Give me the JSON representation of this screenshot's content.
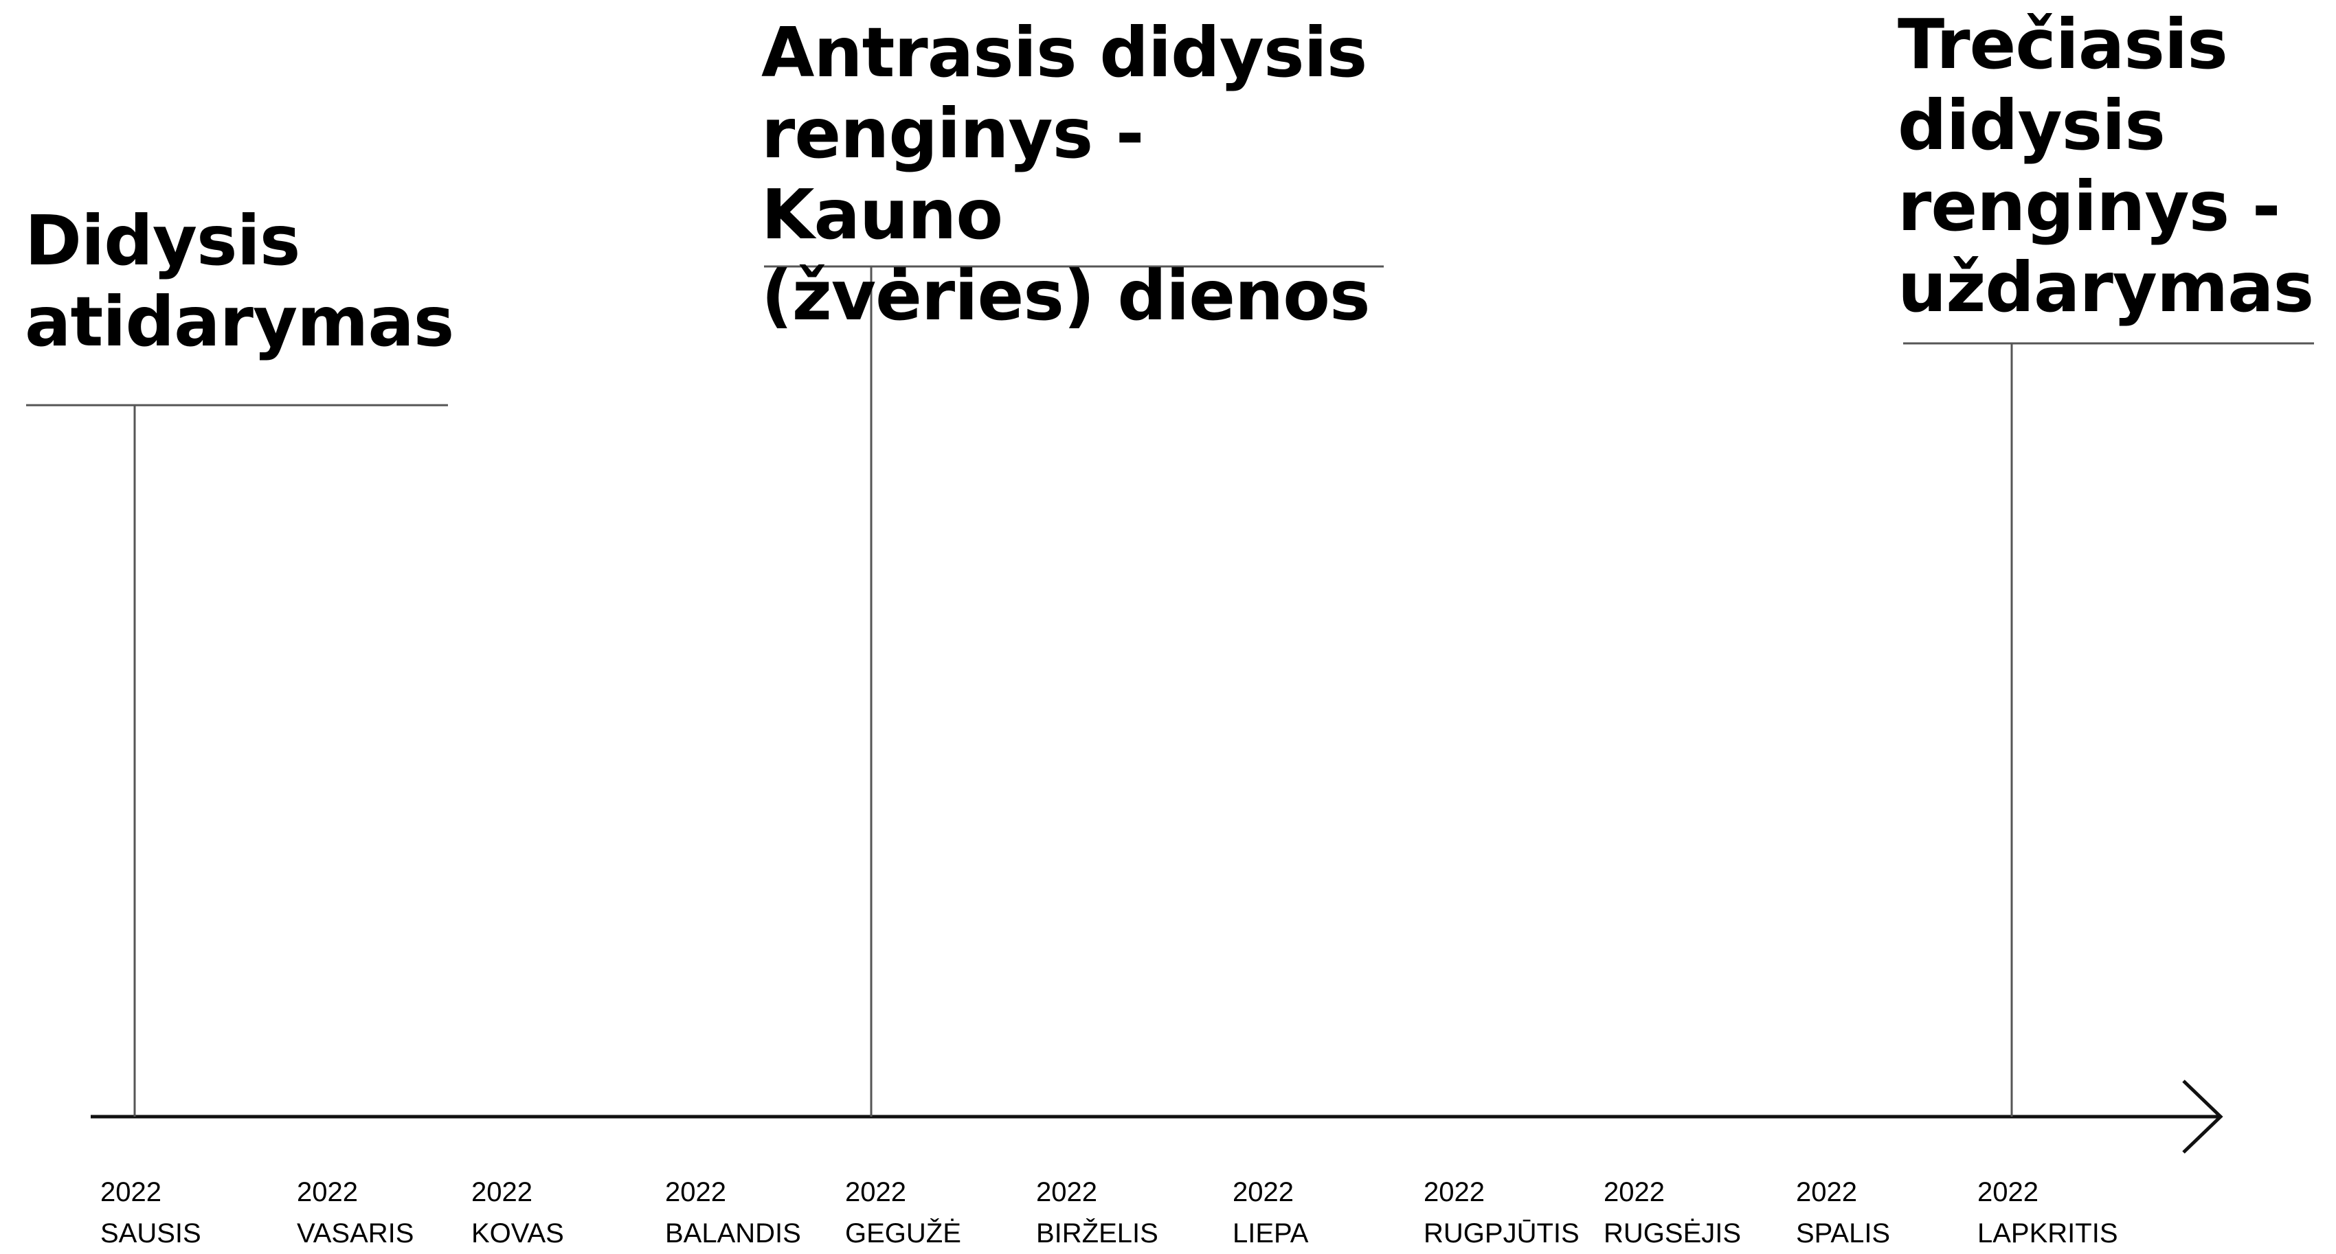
{
  "colors": {
    "background": "#ffffff",
    "text": "#000000",
    "axis": "#111111",
    "rule": "#555555"
  },
  "events": [
    {
      "title": "Didysis\natidarymas",
      "month": "SAUSIS"
    },
    {
      "title": "Antrasis didysis\nrenginys - Kauno\n(žvėries) dienos",
      "month": "GEGUŽĖ"
    },
    {
      "title": "Trečiasis\ndidysis\nrenginys -\nuždarymas",
      "month": "LAPKRITIS"
    }
  ],
  "months": [
    {
      "year": "2022",
      "name": "SAUSIS"
    },
    {
      "year": "2022",
      "name": "VASARIS"
    },
    {
      "year": "2022",
      "name": "KOVAS"
    },
    {
      "year": "2022",
      "name": "BALANDIS"
    },
    {
      "year": "2022",
      "name": "GEGUŽĖ"
    },
    {
      "year": "2022",
      "name": "BIRŽELIS"
    },
    {
      "year": "2022",
      "name": "LIEPA"
    },
    {
      "year": "2022",
      "name": "RUGPJŪTIS"
    },
    {
      "year": "2022",
      "name": "RUGSĖJIS"
    },
    {
      "year": "2022",
      "name": "SPALIS"
    },
    {
      "year": "2022",
      "name": "LAPKRITIS"
    }
  ]
}
